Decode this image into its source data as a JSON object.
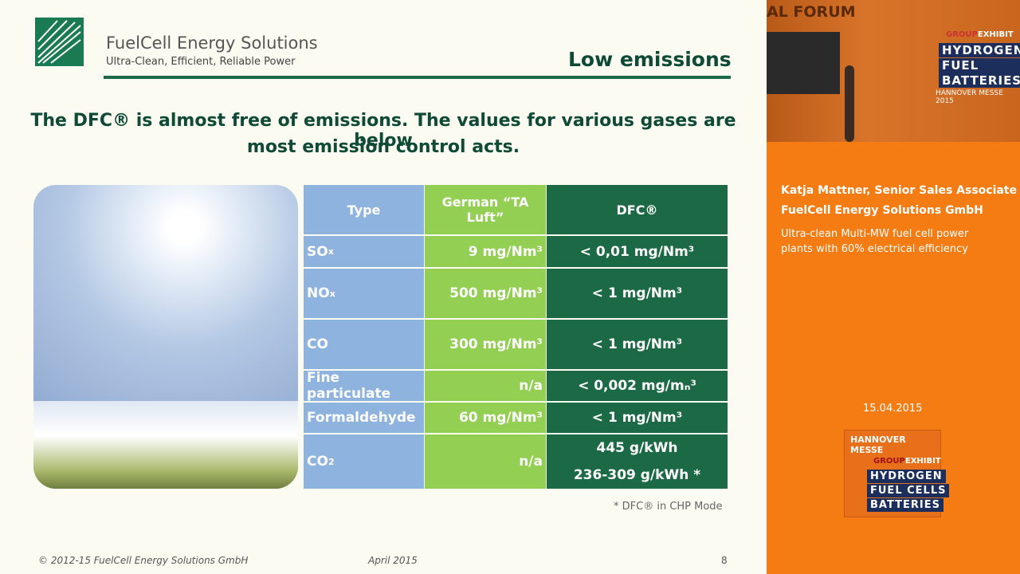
{
  "header": {
    "company": "FuelCell Energy Solutions",
    "tagline": "Ultra-Clean, Efficient, Reliable Power",
    "slide_title": "Low emissions"
  },
  "lead": [
    "The DFC® is almost free of emissions. The values for various gases are below",
    "most emission control acts."
  ],
  "table": {
    "columns": [
      "Type",
      "German “TA Luft”",
      "DFC®"
    ],
    "rows": [
      [
        {
          "text": "SO",
          "sub": "x"
        },
        "9 mg/Nm³",
        "< 0,01 mg/Nm³"
      ],
      [
        {
          "text": "NO",
          "sub": "x"
        },
        "500 mg/Nm³",
        "< 1 mg/Nm³"
      ],
      [
        {
          "text": "CO"
        },
        "300 mg/Nm³",
        "< 1 mg/Nm³"
      ],
      [
        {
          "text": "Fine particulate"
        },
        "n/a",
        "< 0,002 mg/mₙ³"
      ],
      [
        {
          "text": "Formaldehyde"
        },
        "60 mg/Nm³",
        "< 1 mg/Nm³"
      ],
      [
        {
          "text": "CO",
          "sub": "2"
        },
        "n/a",
        [
          "445 g/kWh",
          "236-309 g/kWh *"
        ]
      ]
    ]
  },
  "footnote": "*  DFC® in CHP Mode",
  "footer": {
    "copyright": "© 2012-15 FuelCell Energy Solutions GmbH",
    "date": "April 2015",
    "page": "8"
  },
  "sidebar": {
    "video": {
      "banner": "AL FORUM",
      "group_a": "GROUP",
      "group_b": "EXHIBIT",
      "lines": [
        "HYDROGEN",
        "FUEL CELLS",
        "BATTERIES"
      ],
      "event": "HANNOVER MESSE 2015"
    },
    "speaker": "Katja Mattner, Senior Sales Associate",
    "company": "FuelCell Energy Solutions GmbH",
    "description": [
      "Ultra-clean Multi-MW fuel cell power",
      "plants with 60% electrical efficiency"
    ],
    "date": "15.04.2015",
    "badge": {
      "title": "HANNOVER MESSE",
      "group_a": "GROUP",
      "group_b": "EXHIBIT",
      "lines": [
        "HYDROGEN",
        "FUEL CELLS",
        "BATTERIES"
      ]
    }
  }
}
